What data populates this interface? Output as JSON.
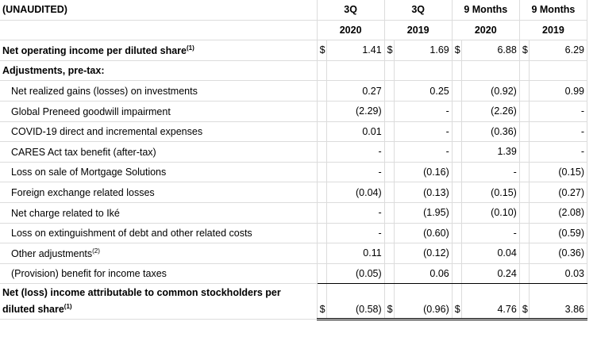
{
  "header": {
    "label": "(UNAUDITED)",
    "periods": [
      "3Q",
      "3Q",
      "9 Months",
      "9 Months"
    ],
    "years": [
      "2020",
      "2019",
      "2020",
      "2019"
    ]
  },
  "noi": {
    "label": "Net operating income per diluted share",
    "sup": "(1)",
    "currency": "$",
    "values": [
      "1.41",
      "1.69",
      "6.88",
      "6.29"
    ]
  },
  "adjustments_heading": "Adjustments, pre-tax:",
  "rows": [
    {
      "label": "Net realized gains (losses) on investments",
      "sup": "",
      "values": [
        "0.27",
        "0.25",
        "(0.92)",
        "0.99"
      ]
    },
    {
      "label": "Global Preneed goodwill impairment",
      "sup": "",
      "values": [
        "(2.29)",
        "-",
        "(2.26)",
        "-"
      ]
    },
    {
      "label": "COVID-19 direct and incremental expenses",
      "sup": "",
      "values": [
        "0.01",
        "-",
        "(0.36)",
        "-"
      ]
    },
    {
      "label": "CARES Act tax benefit (after-tax)",
      "sup": "",
      "values": [
        "-",
        "-",
        "1.39",
        "-"
      ]
    },
    {
      "label": "Loss on sale of Mortgage Solutions",
      "sup": "",
      "values": [
        "-",
        "(0.16)",
        "-",
        "(0.15)"
      ]
    },
    {
      "label": "Foreign exchange related losses",
      "sup": "",
      "values": [
        "(0.04)",
        "(0.13)",
        "(0.15)",
        "(0.27)"
      ]
    },
    {
      "label": "Net charge related to Iké",
      "sup": "",
      "values": [
        "-",
        "(1.95)",
        "(0.10)",
        "(2.08)"
      ]
    },
    {
      "label": "Loss on extinguishment of debt and other related costs",
      "sup": "",
      "values": [
        "-",
        "(0.60)",
        "-",
        "(0.59)"
      ]
    },
    {
      "label": "Other adjustments",
      "sup": "(2)",
      "values": [
        "0.11",
        "(0.12)",
        "0.04",
        "(0.36)"
      ]
    },
    {
      "label": "(Provision) benefit for income taxes",
      "sup": "",
      "values": [
        "(0.05)",
        "0.06",
        "0.24",
        "0.03"
      ]
    }
  ],
  "total": {
    "label_line1": "Net (loss) income attributable to common stockholders per",
    "label_line2": "diluted share",
    "sup": "(1)",
    "currency": "$",
    "values": [
      "(0.58)",
      "(0.96)",
      "4.76",
      "3.86"
    ]
  }
}
